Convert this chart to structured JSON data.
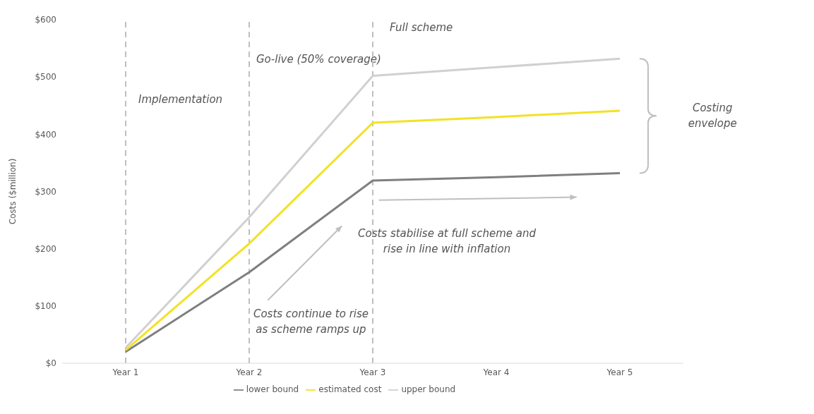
{
  "chart_data": {
    "type": "line",
    "ylabel": "Costs ($million)",
    "categories": [
      "Year 1",
      "Year 2",
      "Year 3",
      "Year 4",
      "Year 5"
    ],
    "series": [
      {
        "name": "lower bound",
        "color": "#7f7f7f",
        "values": [
          20,
          159,
          319,
          325,
          332
        ]
      },
      {
        "name": "estimated cost",
        "color": "#f2e224",
        "values": [
          23,
          209,
          420,
          430,
          441
        ]
      },
      {
        "name": "upper bound",
        "color": "#d0d0d0",
        "values": [
          27,
          255,
          502,
          517,
          532
        ]
      }
    ],
    "ylim": [
      0,
      600
    ],
    "yticks": [
      {
        "value": 0,
        "label": "$0"
      },
      {
        "value": 100,
        "label": "$100"
      },
      {
        "value": 200,
        "label": "$200"
      },
      {
        "value": 300,
        "label": "$300"
      },
      {
        "value": 400,
        "label": "$400"
      },
      {
        "value": 500,
        "label": "$500"
      },
      {
        "value": 600,
        "label": "$600"
      }
    ],
    "ref_lines": [
      {
        "axis": "x",
        "value": "Year 1",
        "label": "Implementation",
        "color": "#bfbfbf",
        "line_style": "dashed"
      },
      {
        "axis": "x",
        "value": "Year 2",
        "label": "Go-live (50% coverage)",
        "color": "#bfbfbf",
        "line_style": "dashed"
      },
      {
        "axis": "x",
        "value": "Year 3",
        "label": "Full scheme",
        "color": "#bfbfbf",
        "line_style": "dashed"
      }
    ],
    "annotations": [
      "Costs continue to rise\nas scheme ramps up",
      "Costs stabilise at full scheme and\nrise in line with inflation",
      "Costing\nenvelope"
    ],
    "grid": false,
    "legend": "bottom",
    "marker": "none",
    "line_style": "solid"
  }
}
